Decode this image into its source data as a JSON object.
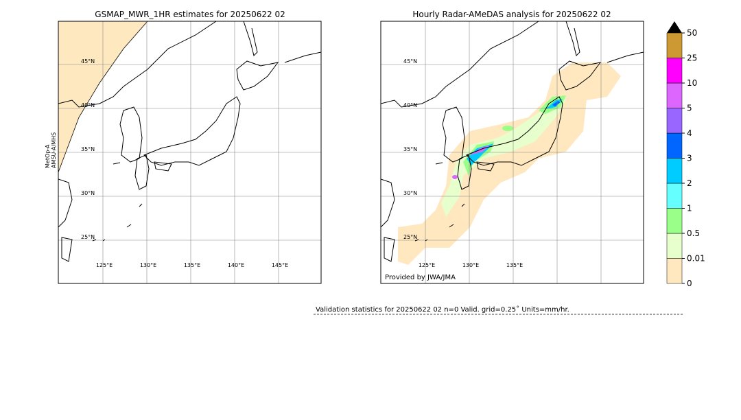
{
  "panels": [
    {
      "title": "GSMAP_MWR_1HR estimates for 20250622 02",
      "lat_labels": [
        "45°N",
        "40°N",
        "35°N",
        "30°N",
        "25°N"
      ],
      "lon_labels": [
        "125°E",
        "130°E",
        "135°E",
        "140°E",
        "145°E"
      ],
      "side_label": [
        "MetOp-A",
        "AMSU-A/MHS"
      ]
    },
    {
      "title": "Hourly Radar-AMeDAS analysis for 20250622 02",
      "lat_labels": [
        "45°N",
        "40°N",
        "35°N",
        "30°N",
        "25°N"
      ],
      "lon_labels": [
        "125°E",
        "130°E",
        "135°E"
      ],
      "credit": "Provided by JWA/JMA"
    }
  ],
  "colorbar": {
    "labels": [
      "0",
      "0.01",
      "0.5",
      "1",
      "2",
      "3",
      "4",
      "5",
      "10",
      "25",
      "50"
    ],
    "colors": [
      "#ffe8bf",
      "#e6ffcc",
      "#99ff88",
      "#66ffff",
      "#00ccff",
      "#0066ff",
      "#9966ff",
      "#dd66ff",
      "#ff00ff",
      "#cc9933"
    ]
  },
  "footer": "Validation statistics for 20250622 02  n=0 Valid. grid=0.25˚ Units=mm/hr."
}
